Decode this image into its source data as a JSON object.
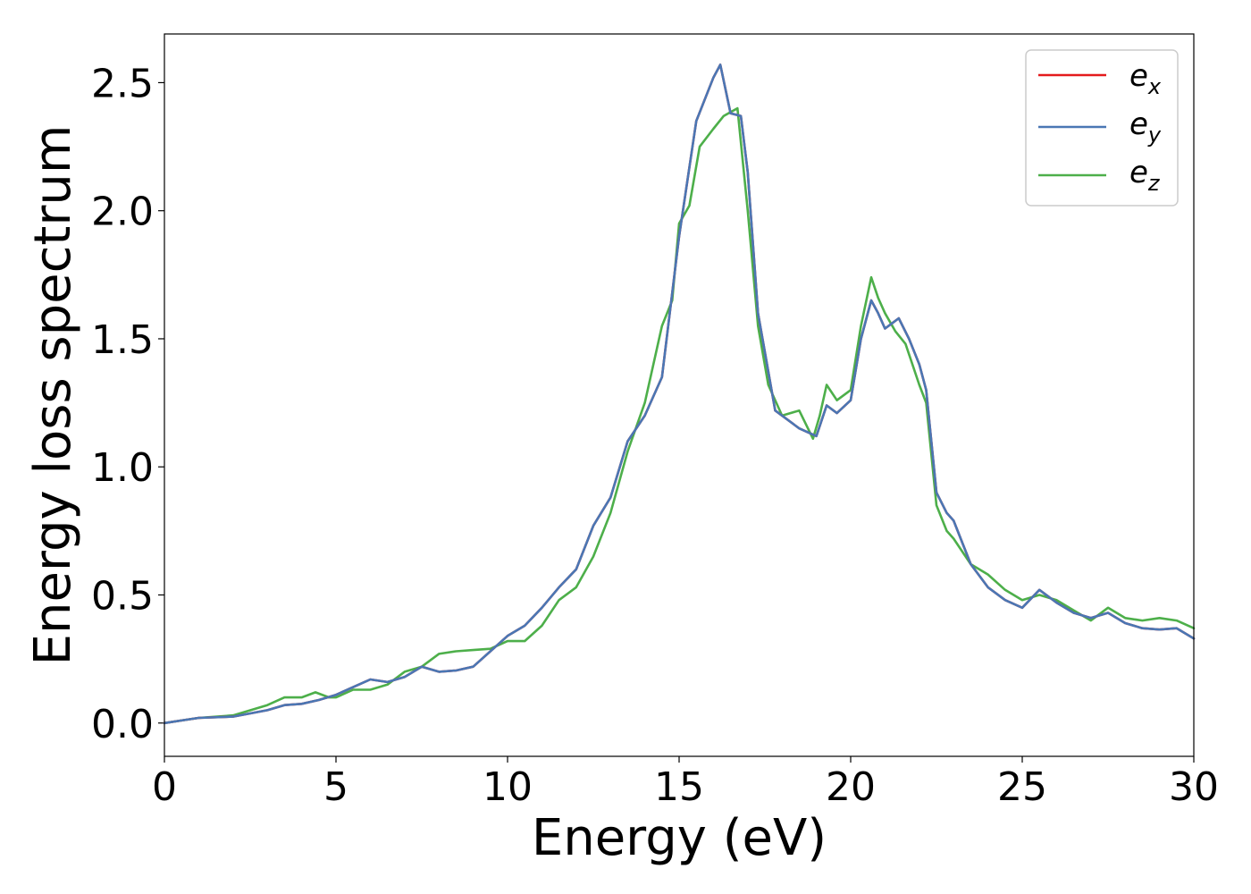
{
  "chart_data": {
    "type": "line",
    "title": "",
    "xlabel": "Energy (eV)",
    "ylabel": "Energy loss spectrum",
    "xlim": [
      0,
      30
    ],
    "ylim": [
      -0.13,
      2.69
    ],
    "xticks": [
      0,
      5,
      10,
      15,
      20,
      25,
      30
    ],
    "xtick_labels": [
      "0",
      "5",
      "10",
      "15",
      "20",
      "25",
      "30"
    ],
    "yticks": [
      0.0,
      0.5,
      1.0,
      1.5,
      2.0,
      2.5
    ],
    "ytick_labels": [
      "0.0",
      "0.5",
      "1.0",
      "1.5",
      "2.0",
      "2.5"
    ],
    "grid": false,
    "legend_position": "top-right",
    "series": [
      {
        "name": "e",
        "subscript": "x",
        "color": "#e41a1c",
        "points": [
          [
            0,
            0
          ],
          [
            0.5,
            0.01
          ],
          [
            1,
            0.02
          ],
          [
            2,
            0.025
          ],
          [
            3,
            0.05
          ],
          [
            3.5,
            0.07
          ],
          [
            4,
            0.075
          ],
          [
            4.5,
            0.09
          ],
          [
            5,
            0.11
          ],
          [
            5.5,
            0.14
          ],
          [
            6,
            0.17
          ],
          [
            6.5,
            0.16
          ],
          [
            7,
            0.18
          ],
          [
            7.5,
            0.22
          ],
          [
            8,
            0.2
          ],
          [
            8.5,
            0.205
          ],
          [
            9,
            0.22
          ],
          [
            9.5,
            0.28
          ],
          [
            10,
            0.34
          ],
          [
            10.5,
            0.38
          ],
          [
            11,
            0.45
          ],
          [
            11.5,
            0.53
          ],
          [
            12,
            0.6
          ],
          [
            12.5,
            0.77
          ],
          [
            13,
            0.88
          ],
          [
            13.5,
            1.1
          ],
          [
            14,
            1.2
          ],
          [
            14.5,
            1.35
          ],
          [
            15,
            1.9
          ],
          [
            15.5,
            2.35
          ],
          [
            16,
            2.52
          ],
          [
            16.2,
            2.57
          ],
          [
            16.5,
            2.38
          ],
          [
            16.8,
            2.37
          ],
          [
            17,
            2.15
          ],
          [
            17.3,
            1.6
          ],
          [
            17.8,
            1.22
          ],
          [
            18.5,
            1.15
          ],
          [
            19,
            1.12
          ],
          [
            19.3,
            1.24
          ],
          [
            19.6,
            1.21
          ],
          [
            20,
            1.26
          ],
          [
            20.3,
            1.5
          ],
          [
            20.6,
            1.65
          ],
          [
            20.8,
            1.6
          ],
          [
            21,
            1.54
          ],
          [
            21.2,
            1.56
          ],
          [
            21.4,
            1.58
          ],
          [
            21.7,
            1.5
          ],
          [
            22,
            1.4
          ],
          [
            22.2,
            1.3
          ],
          [
            22.5,
            0.9
          ],
          [
            22.8,
            0.82
          ],
          [
            23,
            0.79
          ],
          [
            23.5,
            0.62
          ],
          [
            24,
            0.53
          ],
          [
            24.5,
            0.48
          ],
          [
            25,
            0.45
          ],
          [
            25.5,
            0.52
          ],
          [
            26,
            0.47
          ],
          [
            26.5,
            0.43
          ],
          [
            27,
            0.41
          ],
          [
            27.5,
            0.43
          ],
          [
            28,
            0.39
          ],
          [
            28.5,
            0.37
          ],
          [
            29,
            0.365
          ],
          [
            29.5,
            0.37
          ],
          [
            30,
            0.33
          ]
        ]
      },
      {
        "name": "e",
        "subscript": "y",
        "color": "#4a77b4",
        "points": [
          [
            0,
            0
          ],
          [
            0.5,
            0.01
          ],
          [
            1,
            0.02
          ],
          [
            2,
            0.025
          ],
          [
            3,
            0.05
          ],
          [
            3.5,
            0.07
          ],
          [
            4,
            0.075
          ],
          [
            4.5,
            0.09
          ],
          [
            5,
            0.11
          ],
          [
            5.5,
            0.14
          ],
          [
            6,
            0.17
          ],
          [
            6.5,
            0.16
          ],
          [
            7,
            0.18
          ],
          [
            7.5,
            0.22
          ],
          [
            8,
            0.2
          ],
          [
            8.5,
            0.205
          ],
          [
            9,
            0.22
          ],
          [
            9.5,
            0.28
          ],
          [
            10,
            0.34
          ],
          [
            10.5,
            0.38
          ],
          [
            11,
            0.45
          ],
          [
            11.5,
            0.53
          ],
          [
            12,
            0.6
          ],
          [
            12.5,
            0.77
          ],
          [
            13,
            0.88
          ],
          [
            13.5,
            1.1
          ],
          [
            14,
            1.2
          ],
          [
            14.5,
            1.35
          ],
          [
            15,
            1.9
          ],
          [
            15.5,
            2.35
          ],
          [
            16,
            2.52
          ],
          [
            16.2,
            2.57
          ],
          [
            16.5,
            2.38
          ],
          [
            16.8,
            2.37
          ],
          [
            17,
            2.15
          ],
          [
            17.3,
            1.6
          ],
          [
            17.8,
            1.22
          ],
          [
            18.5,
            1.15
          ],
          [
            19,
            1.12
          ],
          [
            19.3,
            1.24
          ],
          [
            19.6,
            1.21
          ],
          [
            20,
            1.26
          ],
          [
            20.3,
            1.5
          ],
          [
            20.6,
            1.65
          ],
          [
            20.8,
            1.6
          ],
          [
            21,
            1.54
          ],
          [
            21.2,
            1.56
          ],
          [
            21.4,
            1.58
          ],
          [
            21.7,
            1.5
          ],
          [
            22,
            1.4
          ],
          [
            22.2,
            1.3
          ],
          [
            22.5,
            0.9
          ],
          [
            22.8,
            0.82
          ],
          [
            23,
            0.79
          ],
          [
            23.5,
            0.62
          ],
          [
            24,
            0.53
          ],
          [
            24.5,
            0.48
          ],
          [
            25,
            0.45
          ],
          [
            25.5,
            0.52
          ],
          [
            26,
            0.47
          ],
          [
            26.5,
            0.43
          ],
          [
            27,
            0.41
          ],
          [
            27.5,
            0.43
          ],
          [
            28,
            0.39
          ],
          [
            28.5,
            0.37
          ],
          [
            29,
            0.365
          ],
          [
            29.5,
            0.37
          ],
          [
            30,
            0.33
          ]
        ]
      },
      {
        "name": "e",
        "subscript": "z",
        "color": "#4daf4a",
        "points": [
          [
            0,
            0
          ],
          [
            0.5,
            0.01
          ],
          [
            1,
            0.02
          ],
          [
            2,
            0.03
          ],
          [
            3,
            0.07
          ],
          [
            3.5,
            0.1
          ],
          [
            4,
            0.1
          ],
          [
            4.4,
            0.12
          ],
          [
            4.8,
            0.1
          ],
          [
            5,
            0.1
          ],
          [
            5.5,
            0.13
          ],
          [
            6,
            0.13
          ],
          [
            6.5,
            0.15
          ],
          [
            7,
            0.2
          ],
          [
            7.5,
            0.22
          ],
          [
            8,
            0.27
          ],
          [
            8.5,
            0.28
          ],
          [
            9,
            0.285
          ],
          [
            9.5,
            0.29
          ],
          [
            10,
            0.32
          ],
          [
            10.5,
            0.32
          ],
          [
            11,
            0.38
          ],
          [
            11.5,
            0.48
          ],
          [
            12,
            0.53
          ],
          [
            12.5,
            0.65
          ],
          [
            13,
            0.82
          ],
          [
            13.5,
            1.06
          ],
          [
            14,
            1.25
          ],
          [
            14.5,
            1.55
          ],
          [
            14.8,
            1.65
          ],
          [
            15,
            1.95
          ],
          [
            15.3,
            2.02
          ],
          [
            15.6,
            2.25
          ],
          [
            16,
            2.32
          ],
          [
            16.3,
            2.37
          ],
          [
            16.7,
            2.4
          ],
          [
            17,
            2.0
          ],
          [
            17.3,
            1.55
          ],
          [
            17.6,
            1.32
          ],
          [
            18,
            1.2
          ],
          [
            18.5,
            1.22
          ],
          [
            18.9,
            1.11
          ],
          [
            19.1,
            1.2
          ],
          [
            19.3,
            1.32
          ],
          [
            19.6,
            1.26
          ],
          [
            20,
            1.3
          ],
          [
            20.3,
            1.55
          ],
          [
            20.6,
            1.74
          ],
          [
            20.8,
            1.66
          ],
          [
            21,
            1.6
          ],
          [
            21.3,
            1.53
          ],
          [
            21.6,
            1.48
          ],
          [
            22,
            1.32
          ],
          [
            22.2,
            1.25
          ],
          [
            22.5,
            0.85
          ],
          [
            22.8,
            0.75
          ],
          [
            23,
            0.72
          ],
          [
            23.5,
            0.62
          ],
          [
            24,
            0.58
          ],
          [
            24.5,
            0.52
          ],
          [
            25,
            0.48
          ],
          [
            25.5,
            0.5
          ],
          [
            26,
            0.48
          ],
          [
            26.5,
            0.44
          ],
          [
            27,
            0.4
          ],
          [
            27.5,
            0.45
          ],
          [
            28,
            0.41
          ],
          [
            28.5,
            0.4
          ],
          [
            29,
            0.41
          ],
          [
            29.5,
            0.4
          ],
          [
            30,
            0.37
          ]
        ]
      }
    ]
  }
}
